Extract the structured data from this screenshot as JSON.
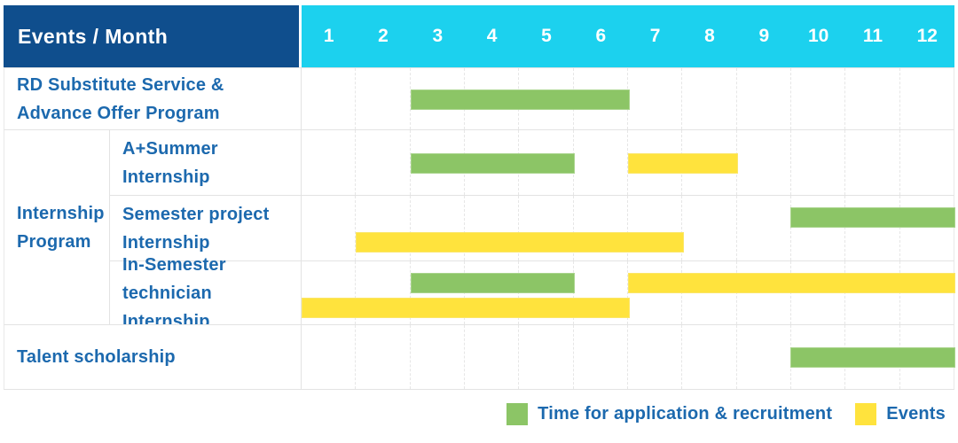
{
  "colors": {
    "header_bg": "#0F4E8D",
    "months_bg": "#1CD1EE",
    "label_text": "#1C69AE",
    "recruitment_green": "#8CC566",
    "event_yellow": "#FFE33D",
    "grid_line": "#E3E3E3"
  },
  "chart_data": {
    "type": "table",
    "subtype": "gantt",
    "corner_title": "Events / Month",
    "months": [
      "1",
      "2",
      "3",
      "4",
      "5",
      "6",
      "7",
      "8",
      "9",
      "10",
      "11",
      "12"
    ],
    "x_range": [
      1,
      12
    ],
    "rows": [
      {
        "label": "RD Substitute Service &\nAdvance Offer Program",
        "group": null,
        "bars": [
          {
            "series": "recruitment",
            "start_month": 3,
            "end_month": 6,
            "lane": "center"
          }
        ]
      },
      {
        "label": "A+Summer\nInternship",
        "group": "Internship\nProgram",
        "bars": [
          {
            "series": "recruitment",
            "start_month": 3,
            "end_month": 5,
            "lane": "center"
          },
          {
            "series": "event",
            "start_month": 7,
            "end_month": 8,
            "lane": "center"
          }
        ]
      },
      {
        "label": "Semester project\nInternship",
        "group": "Internship\nProgram",
        "bars": [
          {
            "series": "recruitment",
            "start_month": 10,
            "end_month": 12,
            "lane": "top"
          },
          {
            "series": "event",
            "start_month": 2,
            "end_month": 7,
            "lane": "bottom"
          }
        ]
      },
      {
        "label": "In-Semester\ntechnician Internship",
        "group": "Internship\nProgram",
        "bars": [
          {
            "series": "recruitment",
            "start_month": 3,
            "end_month": 5,
            "lane": "top"
          },
          {
            "series": "event",
            "start_month": 7,
            "end_month": 12,
            "lane": "top"
          },
          {
            "series": "event",
            "start_month": 1,
            "end_month": 6,
            "lane": "bottom"
          }
        ]
      },
      {
        "label": "Talent scholarship",
        "group": null,
        "bars": [
          {
            "series": "recruitment",
            "start_month": 10,
            "end_month": 12,
            "lane": "center"
          }
        ]
      }
    ],
    "legend": [
      {
        "series": "recruitment",
        "label": "Time for application & recruitment",
        "color": "#8CC566"
      },
      {
        "series": "event",
        "label": "Events",
        "color": "#FFE33D"
      }
    ]
  }
}
